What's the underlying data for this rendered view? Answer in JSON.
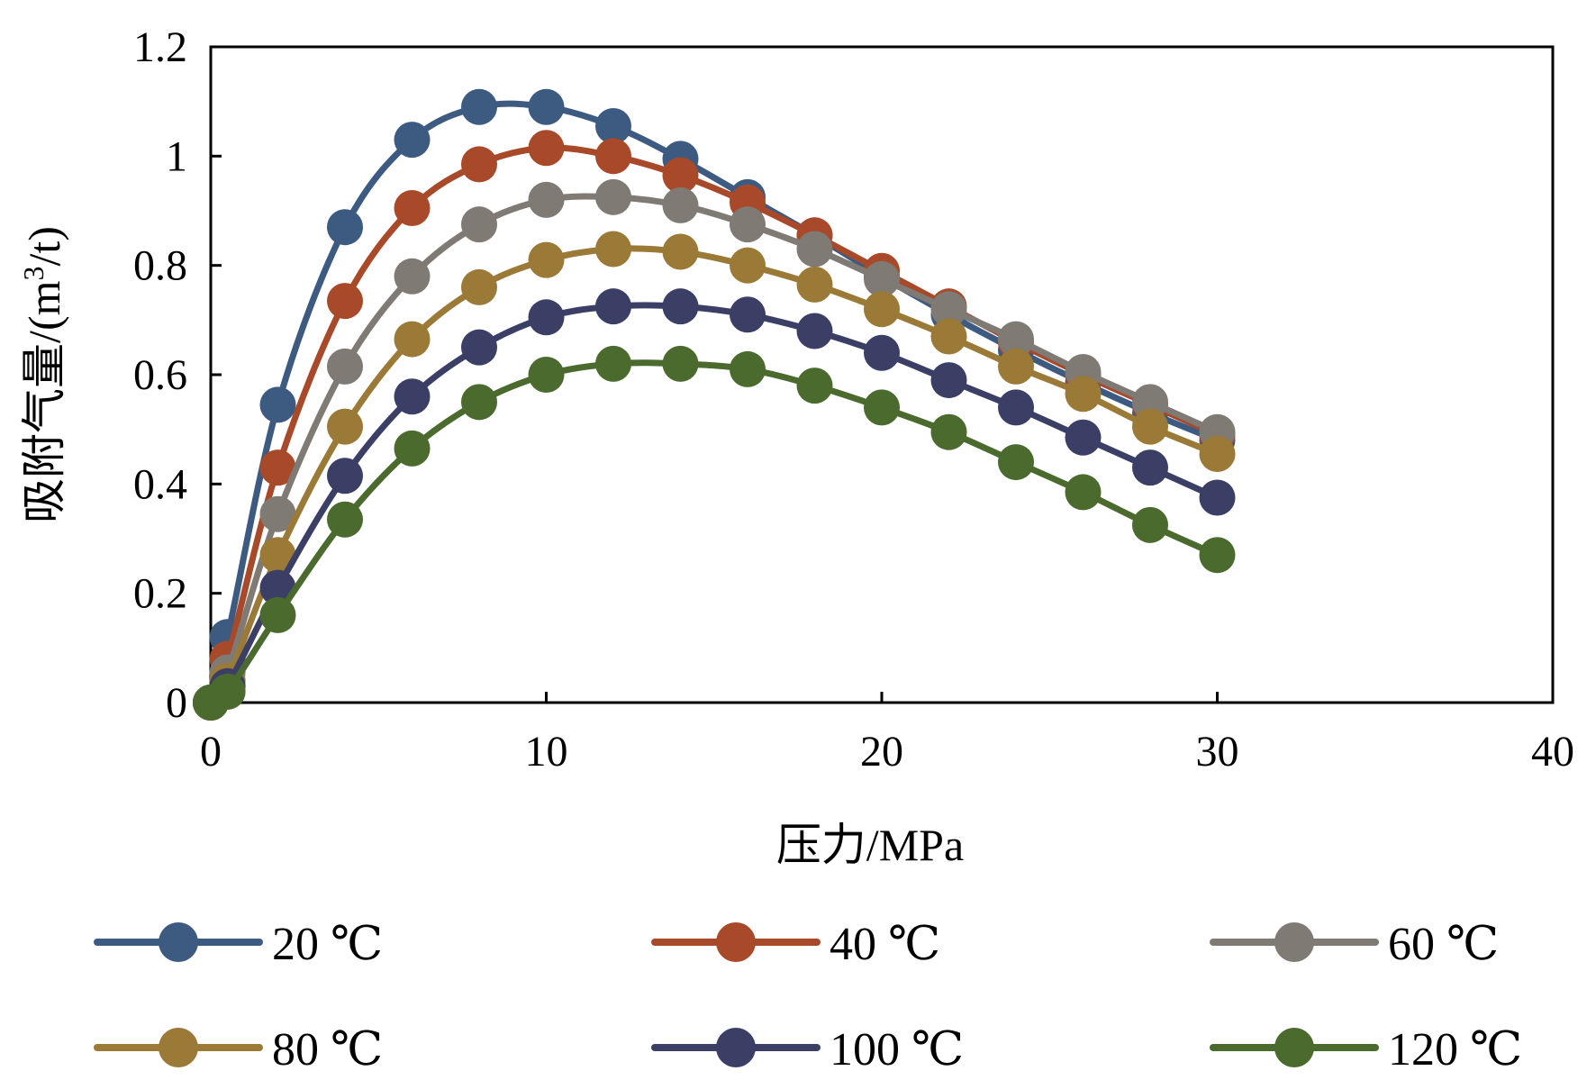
{
  "chart_data": {
    "type": "line",
    "title": "",
    "xlabel": "压力/MPa",
    "ylabel": "吸附气量/(m³/t)",
    "ylabel_parts": {
      "before": "吸附气量/(m",
      "sup": "3",
      "after": "/t)"
    },
    "xlim": [
      0,
      40
    ],
    "ylim": [
      0,
      1.2
    ],
    "xticks": [
      "0",
      "10",
      "20",
      "30",
      "40"
    ],
    "xtick_values": [
      0,
      10,
      20,
      30,
      40
    ],
    "yticks": [
      "0",
      "0.2",
      "0.4",
      "0.6",
      "0.8",
      "1",
      "1.2"
    ],
    "ytick_values": [
      0,
      0.2,
      0.4,
      0.6,
      0.8,
      1.0,
      1.2
    ],
    "grid": false,
    "legend_position": "bottom",
    "x": [
      0,
      0.5,
      2,
      4,
      6,
      8,
      10,
      12,
      14,
      16,
      18,
      20,
      22,
      24,
      26,
      28,
      30
    ],
    "series": [
      {
        "name": "20 ℃",
        "color": "#3d5a80",
        "values": [
          0,
          0.12,
          0.545,
          0.87,
          1.03,
          1.09,
          1.09,
          1.055,
          0.995,
          0.925,
          0.855,
          0.78,
          0.71,
          0.645,
          0.585,
          0.53,
          0.48
        ]
      },
      {
        "name": "40 ℃",
        "color": "#a8492a",
        "values": [
          0,
          0.08,
          0.43,
          0.735,
          0.905,
          0.985,
          1.015,
          1.0,
          0.965,
          0.915,
          0.855,
          0.79,
          0.725,
          0.66,
          0.6,
          0.545,
          0.49
        ]
      },
      {
        "name": "60 ℃",
        "color": "#7f7a74",
        "values": [
          0,
          0.055,
          0.345,
          0.615,
          0.78,
          0.875,
          0.92,
          0.925,
          0.91,
          0.875,
          0.83,
          0.775,
          0.72,
          0.665,
          0.605,
          0.55,
          0.495
        ]
      },
      {
        "name": "80 ℃",
        "color": "#9a7a36",
        "values": [
          0,
          0.04,
          0.27,
          0.505,
          0.665,
          0.76,
          0.81,
          0.83,
          0.825,
          0.8,
          0.765,
          0.72,
          0.67,
          0.615,
          0.565,
          0.505,
          0.455
        ]
      },
      {
        "name": "100 ℃",
        "color": "#3b3f66",
        "values": [
          0,
          0.03,
          0.21,
          0.415,
          0.56,
          0.65,
          0.705,
          0.725,
          0.725,
          0.71,
          0.68,
          0.64,
          0.59,
          0.54,
          0.485,
          0.43,
          0.375
        ]
      },
      {
        "name": "120 ℃",
        "color": "#4b6a2e",
        "values": [
          0,
          0.02,
          0.16,
          0.335,
          0.465,
          0.55,
          0.6,
          0.62,
          0.62,
          0.61,
          0.58,
          0.54,
          0.495,
          0.44,
          0.385,
          0.325,
          0.27
        ]
      }
    ]
  }
}
